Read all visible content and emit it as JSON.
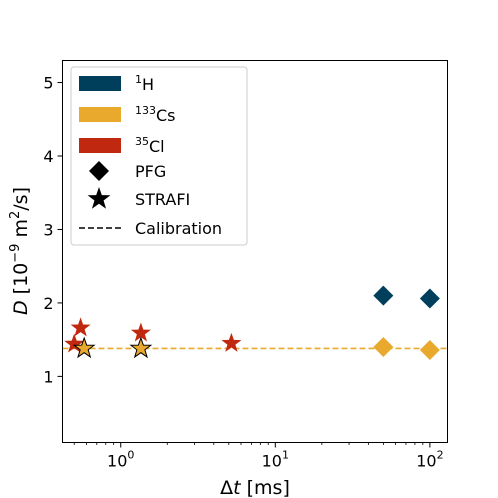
{
  "chart_data": {
    "type": "scatter",
    "xscale": "log",
    "xlim": [
      0.42,
      130
    ],
    "ylim": [
      0.1,
      5.3
    ],
    "xlabel": {
      "pre": "Δ",
      "var": "t",
      "post": " [ms]"
    },
    "ylabel": {
      "var": "D",
      "open": " [10",
      "exp": "−9",
      "mid": " m",
      "exp2": "2",
      "close": "/s]"
    },
    "xticks": [
      {
        "value": 1,
        "base": "10",
        "exp": "0"
      },
      {
        "value": 10,
        "base": "10",
        "exp": "1"
      },
      {
        "value": 100,
        "base": "10",
        "exp": "2"
      }
    ],
    "yticks": [
      {
        "value": 1,
        "label": "1"
      },
      {
        "value": 2,
        "label": "2"
      },
      {
        "value": 3,
        "label": "3"
      },
      {
        "value": 4,
        "label": "4"
      },
      {
        "value": 5,
        "label": "5"
      }
    ],
    "grid": false,
    "legend_position": "upper-left",
    "series": [
      {
        "key": "h1",
        "color": "#003f5c",
        "legend": {
          "sup": "1",
          "text": "H"
        },
        "pfg": [
          {
            "x": 50,
            "y": 2.1
          },
          {
            "x": 100,
            "y": 2.06
          }
        ],
        "strafi": []
      },
      {
        "key": "cs133",
        "color": "#e9a92d",
        "legend": {
          "sup": "133",
          "text": "Cs"
        },
        "pfg": [
          {
            "x": 50,
            "y": 1.4
          },
          {
            "x": 100,
            "y": 1.36
          }
        ],
        "strafi": [
          {
            "x": 0.58,
            "y": 1.38
          },
          {
            "x": 1.35,
            "y": 1.38
          }
        ]
      },
      {
        "key": "cl35",
        "color": "#c0290f",
        "legend": {
          "sup": "35",
          "text": "Cl"
        },
        "pfg": [],
        "strafi": [
          {
            "x": 0.5,
            "y": 1.44
          },
          {
            "x": 0.55,
            "y": 1.66
          },
          {
            "x": 1.35,
            "y": 1.59
          },
          {
            "x": 5.2,
            "y": 1.45
          }
        ]
      }
    ],
    "calibration": {
      "y": 1.38,
      "color": "#e9a92d"
    },
    "legend_markers": {
      "pfg": "PFG",
      "strafi": "STRAFI",
      "calibration": "Calibration"
    }
  }
}
